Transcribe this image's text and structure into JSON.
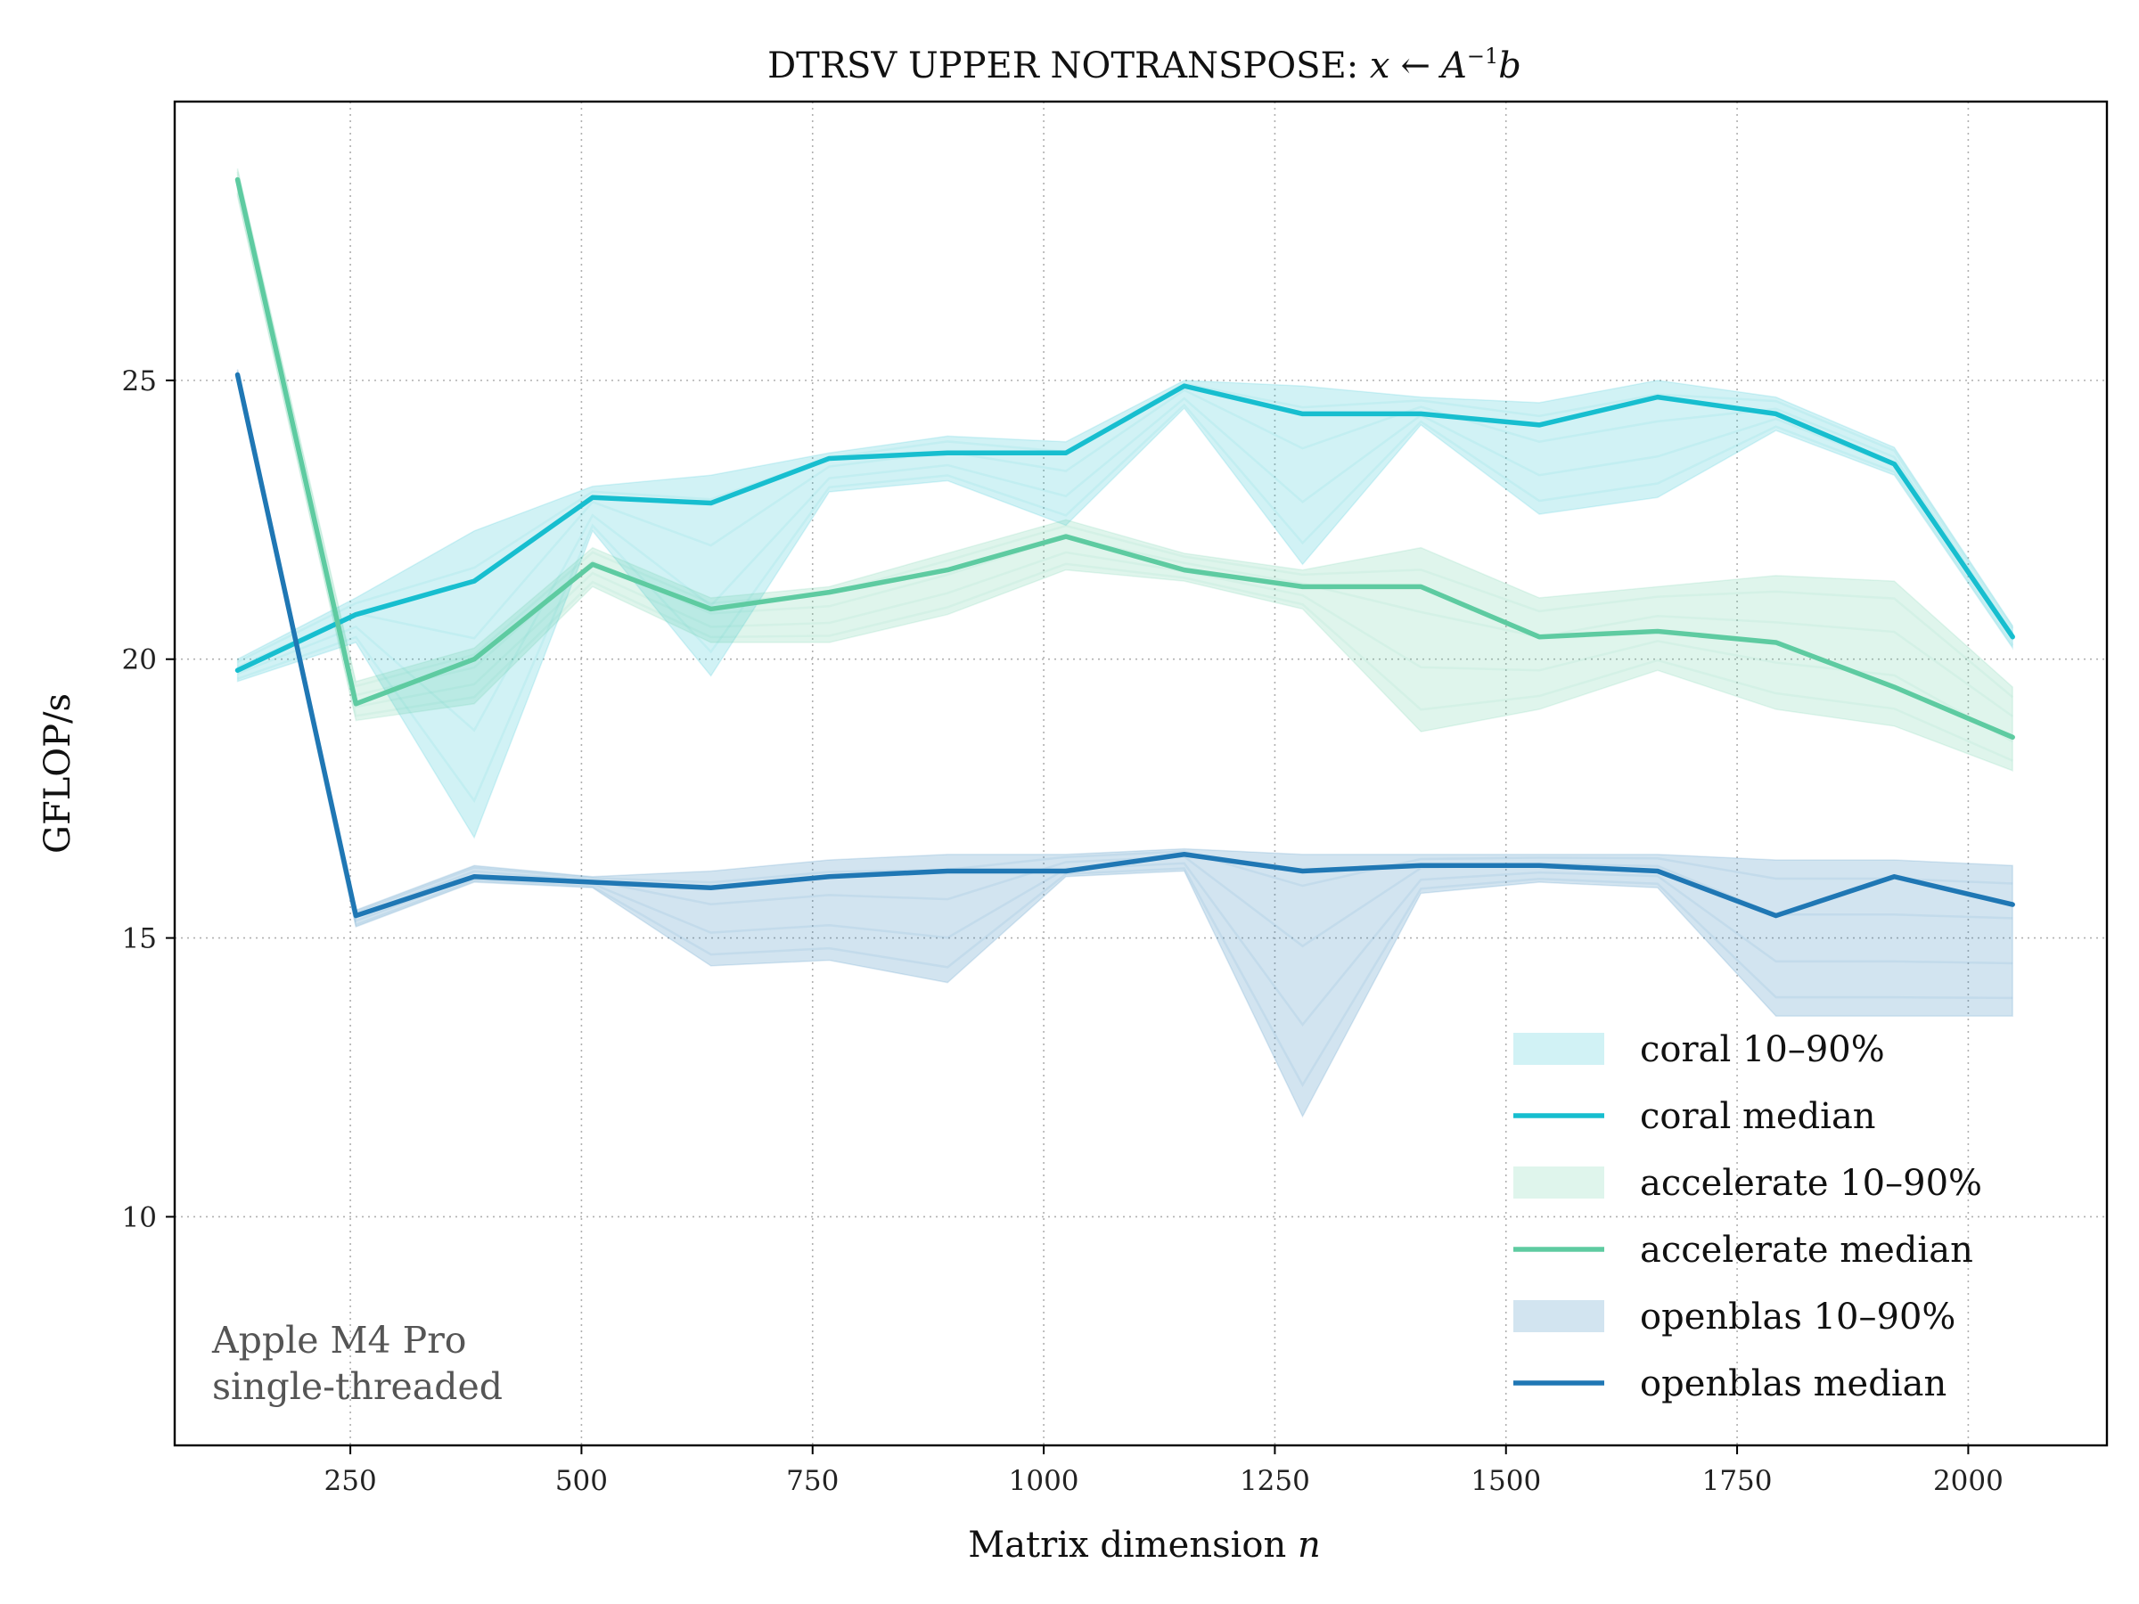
{
  "chart_data": {
    "type": "line",
    "title_text": "DTRSV UPPER NOTRANSPOSE: ",
    "title_math": {
      "x": "x",
      "arrow": "←",
      "A": "A",
      "exp": "−1",
      "b": "b"
    },
    "xlabel": "Matrix dimension ",
    "xlabel_math": "n",
    "ylabel": "GFLOP/s",
    "xlim": [
      60,
      2150
    ],
    "ylim": [
      5.9,
      30.0
    ],
    "xticks": [
      250,
      500,
      750,
      1000,
      1250,
      1500,
      1750,
      2000
    ],
    "yticks": [
      10,
      15,
      20,
      25
    ],
    "grid": true,
    "legend_position": "lower-right",
    "x": [
      128,
      256,
      384,
      512,
      640,
      768,
      896,
      1024,
      1152,
      1280,
      1408,
      1536,
      1664,
      1792,
      1920,
      2048
    ],
    "series": [
      {
        "name": "coral",
        "color": "#17becf",
        "band_label": "coral 10–90%",
        "median_label": "coral median",
        "median": [
          19.8,
          20.8,
          21.4,
          22.9,
          22.8,
          23.6,
          23.7,
          23.7,
          24.9,
          24.4,
          24.4,
          24.2,
          24.7,
          24.4,
          23.5,
          20.4
        ],
        "p10": [
          19.6,
          20.3,
          16.8,
          22.3,
          19.7,
          23.0,
          23.2,
          22.4,
          24.5,
          21.7,
          24.2,
          22.6,
          22.9,
          24.1,
          23.3,
          20.2
        ],
        "p90": [
          20.0,
          21.1,
          22.3,
          23.1,
          23.3,
          23.7,
          24.0,
          23.9,
          25.0,
          24.9,
          24.7,
          24.6,
          25.0,
          24.7,
          23.8,
          20.6
        ]
      },
      {
        "name": "accelerate",
        "color": "#5ecba1",
        "band_label": "accelerate 10–90%",
        "median_label": "accelerate median",
        "median": [
          28.6,
          19.2,
          20.0,
          21.7,
          20.9,
          21.2,
          21.6,
          22.2,
          21.6,
          21.3,
          21.3,
          20.4,
          20.5,
          20.3,
          19.5,
          18.6
        ],
        "p10": [
          28.3,
          18.9,
          19.2,
          21.3,
          20.3,
          20.3,
          20.8,
          21.6,
          21.4,
          20.9,
          18.7,
          19.1,
          19.8,
          19.1,
          18.8,
          18.0
        ],
        "p90": [
          28.8,
          19.6,
          20.2,
          22.0,
          21.1,
          21.3,
          21.9,
          22.5,
          21.9,
          21.6,
          22.0,
          21.1,
          21.3,
          21.5,
          21.4,
          19.5
        ]
      },
      {
        "name": "openblas",
        "color": "#1f77b4",
        "band_label": "openblas 10–90%",
        "median_label": "openblas median",
        "median": [
          25.1,
          15.4,
          16.1,
          16.0,
          15.9,
          16.1,
          16.2,
          16.2,
          16.5,
          16.2,
          16.3,
          16.3,
          16.2,
          15.4,
          16.1,
          15.6
        ],
        "p10": [
          25.0,
          15.2,
          16.0,
          15.9,
          14.5,
          14.6,
          14.2,
          16.1,
          16.2,
          11.8,
          15.8,
          16.0,
          15.9,
          13.6,
          13.6,
          13.6
        ],
        "p90": [
          25.2,
          15.5,
          16.3,
          16.1,
          16.2,
          16.4,
          16.5,
          16.5,
          16.6,
          16.5,
          16.5,
          16.5,
          16.5,
          16.4,
          16.4,
          16.3
        ]
      }
    ],
    "annotation_lines": [
      "Apple M4 Pro",
      "single-threaded"
    ]
  }
}
